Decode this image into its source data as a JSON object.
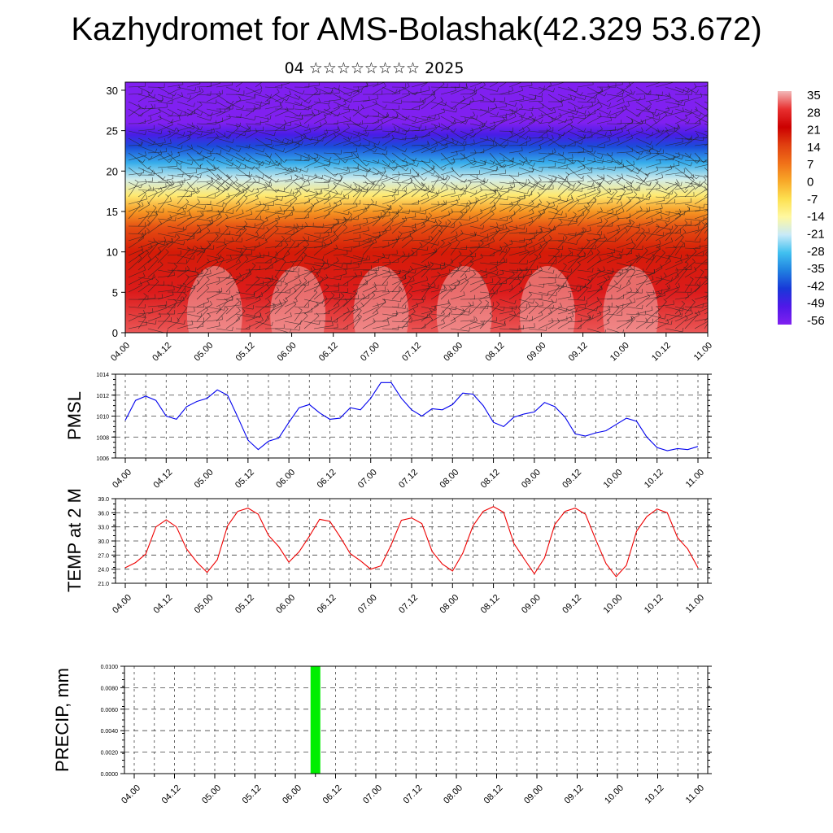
{
  "header": {
    "title": "Kazhydromet for AMS-Bolashak(42.329 53.672)",
    "subtitle": "04 ☆☆☆☆☆☆☆☆ 2025"
  },
  "chart_data": [
    {
      "type": "heatmap",
      "x_ticks": [
        "04.00",
        "04.12",
        "05.00",
        "05.12",
        "06.00",
        "06.12",
        "07.00",
        "07.12",
        "08.00",
        "08.12",
        "09.00",
        "09.12",
        "10.00",
        "10.12",
        "11.00"
      ],
      "y_ticks": [
        "0",
        "5",
        "10",
        "15",
        "20",
        "25",
        "30"
      ],
      "ylim": [
        0,
        31
      ],
      "colorbar": {
        "labels": [
          "35",
          "28",
          "21",
          "14",
          "7",
          "0",
          "-7",
          "-14",
          "-21",
          "-28",
          "-35",
          "-42",
          "-49",
          "-56"
        ],
        "colors": [
          "#f2b8b8",
          "#e83030",
          "#cc0000",
          "#e04010",
          "#f07018",
          "#f8a828",
          "#fde050",
          "#fff8a0",
          "#c8eaf8",
          "#40c0f0",
          "#2080e0",
          "#1838d8",
          "#5018e8",
          "#8020f0"
        ]
      },
      "level_temps": [
        [
          0,
          30
        ],
        [
          5,
          25
        ],
        [
          10,
          18
        ],
        [
          13,
          12
        ],
        [
          15,
          2
        ],
        [
          17,
          -10
        ],
        [
          19,
          -20
        ],
        [
          21,
          -30
        ],
        [
          23,
          -40
        ],
        [
          24.5,
          -48
        ],
        [
          26,
          -56
        ],
        [
          31,
          -60
        ]
      ],
      "overlay": "wind barbs"
    },
    {
      "type": "line",
      "ylabel": "PMSL",
      "x_ticks": [
        "04.00",
        "04.12",
        "05.00",
        "05.12",
        "06.00",
        "06.12",
        "07.00",
        "07.12",
        "08.00",
        "08.12",
        "09.00",
        "09.12",
        "10.00",
        "10.12",
        "11.00"
      ],
      "y_ticks": [
        "1006",
        "1008",
        "1010",
        "1012",
        "1014"
      ],
      "ylim": [
        1006,
        1014
      ],
      "color": "#0000ee",
      "x": [
        0,
        3,
        6,
        9,
        12,
        15,
        18,
        21,
        24,
        27,
        30,
        33,
        36,
        39,
        42,
        45,
        48,
        51,
        54,
        57,
        60,
        63,
        66,
        69,
        72,
        75,
        78,
        81,
        84,
        87,
        90,
        93,
        96,
        99,
        102,
        105,
        108,
        111,
        114,
        117,
        120,
        123,
        126,
        129,
        132,
        135,
        138,
        141,
        144,
        147,
        150,
        153,
        156,
        159,
        162,
        165,
        168
      ],
      "values": [
        1009.6,
        1011.5,
        1011.9,
        1011.5,
        1010.0,
        1009.7,
        1010.9,
        1011.4,
        1011.7,
        1012.5,
        1012.0,
        1009.9,
        1007.7,
        1006.8,
        1007.6,
        1007.9,
        1009.4,
        1010.8,
        1011.1,
        1010.3,
        1009.7,
        1009.8,
        1010.8,
        1010.6,
        1011.7,
        1013.2,
        1013.2,
        1011.7,
        1010.6,
        1010.0,
        1010.7,
        1010.6,
        1011.1,
        1012.2,
        1012.1,
        1011.0,
        1009.4,
        1009.0,
        1009.9,
        1010.2,
        1010.4,
        1011.3,
        1010.9,
        1009.9,
        1008.3,
        1008.1,
        1008.4,
        1008.6,
        1009.2,
        1009.8,
        1009.5,
        1008.0,
        1007.0,
        1006.7,
        1006.9,
        1006.8,
        1007.1
      ]
    },
    {
      "type": "line",
      "ylabel": "TEMP at 2 M",
      "x_ticks": [
        "04.00",
        "04.12",
        "05.00",
        "05.12",
        "06.00",
        "06.12",
        "07.00",
        "07.12",
        "08.00",
        "08.12",
        "09.00",
        "09.12",
        "10.00",
        "10.12",
        "11.00"
      ],
      "y_ticks": [
        "21.0",
        "24.0",
        "27.0",
        "30.0",
        "33.0",
        "36.0",
        "39.0"
      ],
      "ylim": [
        21,
        39
      ],
      "color": "#ee0000",
      "x": [
        0,
        3,
        6,
        9,
        12,
        15,
        18,
        21,
        24,
        27,
        30,
        33,
        36,
        39,
        42,
        45,
        48,
        51,
        54,
        57,
        60,
        63,
        66,
        69,
        72,
        75,
        78,
        81,
        84,
        87,
        90,
        93,
        96,
        99,
        102,
        105,
        108,
        111,
        114,
        117,
        120,
        123,
        126,
        129,
        132,
        135,
        138,
        141,
        144,
        147,
        150,
        153,
        156,
        159,
        162,
        165,
        168
      ],
      "values": [
        24.3,
        25.4,
        27.2,
        33.0,
        34.5,
        33.0,
        28.3,
        25.5,
        23.3,
        26.0,
        33.2,
        36.3,
        37.0,
        35.7,
        31.2,
        28.8,
        25.5,
        27.7,
        31.0,
        34.6,
        34.2,
        30.9,
        27.3,
        25.8,
        24.0,
        24.7,
        29.2,
        34.4,
        34.9,
        33.7,
        27.8,
        25.1,
        23.6,
        27.4,
        33.2,
        36.3,
        37.3,
        36.1,
        29.5,
        26.2,
        23.0,
        26.4,
        33.5,
        36.3,
        37.0,
        35.7,
        30.3,
        25.2,
        22.4,
        24.8,
        32.1,
        35.2,
        36.8,
        36.0,
        30.7,
        28.3,
        24.3
      ]
    },
    {
      "type": "bar",
      "ylabel": "PRECIP, mm",
      "x_ticks": [
        "04.00",
        "04.12",
        "05.00",
        "05.12",
        "06.00",
        "06.12",
        "07.00",
        "07.12",
        "08.00",
        "08.12",
        "09.00",
        "09.12",
        "10.00",
        "10.12",
        "11.00"
      ],
      "y_ticks": [
        "0.0000",
        "0.0020",
        "0.0040",
        "0.0060",
        "0.0080",
        "0.0100"
      ],
      "ylim": [
        0,
        0.01
      ],
      "color": "#00ee00",
      "bars": [
        {
          "x": 54,
          "value": 0.01
        }
      ]
    }
  ]
}
